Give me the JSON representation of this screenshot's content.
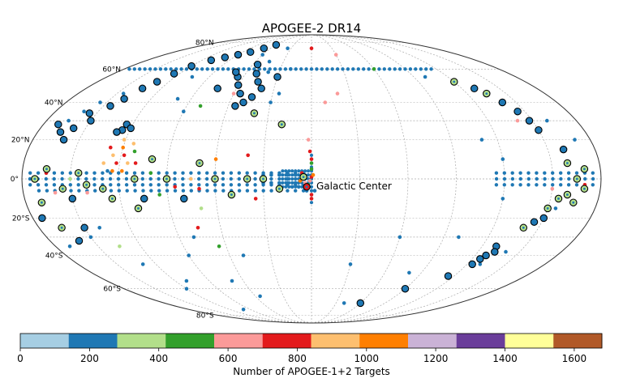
{
  "chart_data": {
    "type": "scatter",
    "projection": "mollweide",
    "coordinate_system": "galactic",
    "title": "APOGEE-2 DR14",
    "annotation": {
      "text": "Galactic Center",
      "l": 0,
      "b": 0
    },
    "lat_ticks": [
      {
        "b": 80,
        "label": "80°N"
      },
      {
        "b": 60,
        "label": "60°N"
      },
      {
        "b": 40,
        "label": "40°N"
      },
      {
        "b": 20,
        "label": "20°N"
      },
      {
        "b": 0,
        "label": "0°"
      },
      {
        "b": -20,
        "label": "20°S"
      },
      {
        "b": -40,
        "label": "40°S"
      },
      {
        "b": -60,
        "label": "60°S"
      },
      {
        "b": -80,
        "label": "80°S"
      }
    ],
    "grid": true,
    "colorbar": {
      "label": "Number of APOGEE-1+2 Targets",
      "range": [
        0,
        1680
      ],
      "colors": [
        "#a6cee3",
        "#1f78b4",
        "#b2df8a",
        "#33a02c",
        "#fb9a99",
        "#e31a1c",
        "#fdbf6f",
        "#ff7f00",
        "#cab2d6",
        "#6a3d9a",
        "#ffff99",
        "#b15928"
      ],
      "ticks": [
        0,
        200,
        400,
        600,
        800,
        1000,
        1200,
        1400,
        1600
      ]
    },
    "series": [
      {
        "name": "disk-band b=+3",
        "b": 3,
        "l_start": 175,
        "l_end": 5,
        "step": 5,
        "color": "#1f78b4"
      },
      {
        "name": "disk-band b=0",
        "b": 0,
        "l_start": 175,
        "l_end": 5,
        "step": 5,
        "color": "#1f78b4"
      },
      {
        "name": "disk-band b=-3",
        "b": -3,
        "l_start": 175,
        "l_end": 5,
        "step": 5,
        "color": "#1f78b4"
      },
      {
        "name": "disk-band b=-6",
        "b": -6,
        "l_start": 170,
        "l_end": 5,
        "step": 5,
        "color": "#1f78b4"
      },
      {
        "name": "disk-band b=+3 (4th quadrant)",
        "b": 3,
        "l_start": -175,
        "l_end": -115,
        "step": 5,
        "color": "#1f78b4"
      },
      {
        "name": "disk-band b=0 (4th quadrant)",
        "b": 0,
        "l_start": -175,
        "l_end": -115,
        "step": 5,
        "color": "#1f78b4"
      },
      {
        "name": "disk-band b=-3 (4th quadrant)",
        "b": -3,
        "l_start": -175,
        "l_end": -115,
        "step": 5,
        "color": "#1f78b4"
      },
      {
        "name": "b=60 stripe",
        "b": 60,
        "l_start": 175,
        "l_end": -115,
        "step": 5,
        "color": "#1f78b4"
      }
    ],
    "points": [
      {
        "l": 0,
        "b": 1,
        "c": "#e31a1c"
      },
      {
        "l": 1,
        "b": -1,
        "c": "#fb9a99"
      },
      {
        "l": -1,
        "b": 2,
        "c": "#ff7f00"
      },
      {
        "l": 2,
        "b": -3,
        "c": "#33a02c"
      },
      {
        "l": 0,
        "b": 5,
        "c": "#33a02c"
      },
      {
        "l": 0,
        "b": 8,
        "c": "#33a02c"
      },
      {
        "l": 0,
        "b": 10,
        "c": "#e31a1c"
      },
      {
        "l": 0,
        "b": -8,
        "c": "#e31a1c"
      },
      {
        "l": 0,
        "b": -10,
        "c": "#e31a1c"
      },
      {
        "l": 1,
        "b": 14,
        "c": "#e31a1c"
      },
      {
        "l": 2,
        "b": 20,
        "c": "#fb9a99"
      },
      {
        "l": 3,
        "b": -6,
        "c": "#1f78b4"
      },
      {
        "l": -2,
        "b": -6,
        "c": "#1f78b4"
      },
      {
        "l": 10,
        "b": 2,
        "c": "#1f78b4"
      },
      {
        "l": 10,
        "b": -2,
        "c": "#1f78b4"
      },
      {
        "l": 15,
        "b": 2,
        "c": "#1f78b4"
      },
      {
        "l": 15,
        "b": -2,
        "c": "#1f78b4"
      },
      {
        "l": 20,
        "b": 2,
        "c": "#1f78b4"
      },
      {
        "l": 20,
        "b": -2,
        "c": "#1f78b4"
      },
      {
        "l": 25,
        "b": 2,
        "c": "#1f78b4"
      },
      {
        "l": 25,
        "b": -2,
        "c": "#1f78b4"
      },
      {
        "l": 30,
        "b": 2,
        "c": "#1f78b4"
      },
      {
        "l": 30,
        "b": -2,
        "c": "#1f78b4"
      },
      {
        "l": 8,
        "b": -4,
        "c": "#1f78b4"
      },
      {
        "l": 12,
        "b": -4,
        "c": "#1f78b4"
      },
      {
        "l": 6,
        "b": 3,
        "c": "#e31a1c"
      },
      {
        "l": 4,
        "b": -2,
        "c": "#fb9a99"
      },
      {
        "l": 7,
        "b": -1,
        "c": "#ff7f00"
      },
      {
        "l": 120,
        "b": 16,
        "c": "#ff7f00"
      },
      {
        "l": 118,
        "b": 12,
        "c": "#e31a1c"
      },
      {
        "l": 115,
        "b": 8,
        "c": "#fdbf6f"
      },
      {
        "l": 122,
        "b": 8,
        "c": "#e31a1c"
      },
      {
        "l": 125,
        "b": 12,
        "c": "#fdbf6f"
      },
      {
        "l": 112,
        "b": 14,
        "c": "#33a02c"
      },
      {
        "l": 128,
        "b": 16,
        "c": "#e31a1c"
      },
      {
        "l": 118,
        "b": 4,
        "c": "#ff7f00"
      },
      {
        "l": 124,
        "b": 4,
        "c": "#ff7f00"
      },
      {
        "l": 130,
        "b": 8,
        "c": "#fdbf6f"
      },
      {
        "l": 110,
        "b": 8,
        "c": "#e31a1c"
      },
      {
        "l": 114,
        "b": 18,
        "c": "#fdbf6f"
      },
      {
        "l": 121,
        "b": 20,
        "c": "#fdbf6f"
      },
      {
        "l": 127,
        "b": 4,
        "c": "#1f78b4"
      },
      {
        "l": 60,
        "b": 10,
        "c": "#ff7f00"
      },
      {
        "l": 70,
        "b": -5,
        "c": "#e31a1c"
      },
      {
        "l": 40,
        "b": 12,
        "c": "#e31a1c"
      },
      {
        "l": 35,
        "b": -10,
        "c": "#e31a1c"
      },
      {
        "l": 85,
        "b": -4,
        "c": "#e31a1c"
      },
      {
        "l": 100,
        "b": 3,
        "c": "#33a02c"
      },
      {
        "l": 140,
        "b": -7,
        "c": "#fb9a99"
      },
      {
        "l": 150,
        "b": 0,
        "c": "#b2df8a"
      },
      {
        "l": 160,
        "b": -7,
        "c": "#fb9a99"
      },
      {
        "l": 165,
        "b": 3,
        "c": "#e31a1c"
      },
      {
        "l": 95,
        "b": -8,
        "c": "#33a02c"
      },
      {
        "l": 75,
        "b": 0,
        "c": "#fdbf6f"
      },
      {
        "l": 20,
        "b": 60,
        "c": "#1f78b4"
      },
      {
        "l": 0,
        "b": 75,
        "c": "#e31a1c"
      },
      {
        "l": 60,
        "b": 45,
        "c": "#fb9a99"
      },
      {
        "l": -20,
        "b": 45,
        "c": "#fb9a99"
      },
      {
        "l": -60,
        "b": 60,
        "c": "#33a02c"
      },
      {
        "l": -100,
        "b": 55,
        "c": "#1f78b4"
      },
      {
        "l": -140,
        "b": 30,
        "c": "#fb9a99"
      },
      {
        "l": -150,
        "b": -20,
        "c": "#e31a1c"
      },
      {
        "l": -160,
        "b": -8,
        "c": "#33a02c"
      },
      {
        "l": -170,
        "b": -3,
        "c": "#e31a1c"
      },
      {
        "l": -120,
        "b": 10,
        "c": "#1f78b4"
      },
      {
        "l": -110,
        "b": 20,
        "c": "#1f78b4"
      },
      {
        "l": -120,
        "b": -10,
        "c": "#1f78b4"
      },
      {
        "l": -100,
        "b": -30,
        "c": "#1f78b4"
      },
      {
        "l": -80,
        "b": -50,
        "c": "#1f78b4"
      },
      {
        "l": -60,
        "b": -30,
        "c": "#1f78b4"
      },
      {
        "l": -30,
        "b": -45,
        "c": "#1f78b4"
      },
      {
        "l": -40,
        "b": -70,
        "c": "#1f78b4"
      },
      {
        "l": -130,
        "b": -45,
        "c": "#1f78b4"
      },
      {
        "l": -140,
        "b": -38,
        "c": "#1f78b4"
      },
      {
        "l": -150,
        "b": -5,
        "c": "#fb9a99"
      },
      {
        "l": -160,
        "b": 30,
        "c": "#1f78b4"
      },
      {
        "l": -170,
        "b": 20,
        "c": "#1f78b4"
      },
      {
        "l": -155,
        "b": -15,
        "c": "#1f78b4"
      },
      {
        "l": 145,
        "b": 45,
        "c": "#1f78b4"
      },
      {
        "l": 155,
        "b": 40,
        "c": "#1f78b4"
      },
      {
        "l": 160,
        "b": 35,
        "c": "#1f78b4"
      },
      {
        "l": 165,
        "b": 30,
        "c": "#1f78b4"
      },
      {
        "l": 140,
        "b": -25,
        "c": "#1f78b4"
      },
      {
        "l": 150,
        "b": -30,
        "c": "#1f78b4"
      },
      {
        "l": 135,
        "b": -35,
        "c": "#b2df8a"
      },
      {
        "l": 170,
        "b": -35,
        "c": "#1f78b4"
      },
      {
        "l": 70,
        "b": -15,
        "c": "#b2df8a"
      },
      {
        "l": 65,
        "b": -35,
        "c": "#33a02c"
      },
      {
        "l": 50,
        "b": -40,
        "c": "#1f78b4"
      },
      {
        "l": 80,
        "b": -30,
        "c": "#1f78b4"
      },
      {
        "l": 90,
        "b": -40,
        "c": "#1f78b4"
      },
      {
        "l": 75,
        "b": -25,
        "c": "#e31a1c"
      },
      {
        "l": 55,
        "b": -65,
        "c": "#1f78b4"
      },
      {
        "l": 70,
        "b": -55,
        "c": "#1f78b4"
      },
      {
        "l": 130,
        "b": -45,
        "c": "#1f78b4"
      },
      {
        "l": 120,
        "b": -60,
        "c": "#1f78b4"
      },
      {
        "l": 100,
        "b": -75,
        "c": "#1f78b4"
      },
      {
        "l": 110,
        "b": -55,
        "c": "#1f78b4"
      },
      {
        "l": 105,
        "b": 55,
        "c": "#1f78b4"
      },
      {
        "l": 100,
        "b": 42,
        "c": "#1f78b4"
      },
      {
        "l": 90,
        "b": 35,
        "c": "#1f78b4"
      },
      {
        "l": 80,
        "b": 38,
        "c": "#33a02c"
      },
      {
        "l": 30,
        "b": 40,
        "c": "#1f78b4"
      },
      {
        "l": 25,
        "b": 45,
        "c": "#1f78b4"
      },
      {
        "l": 40,
        "b": 58,
        "c": "#1f78b4"
      },
      {
        "l": 45,
        "b": 65,
        "c": "#1f78b4"
      },
      {
        "l": 60,
        "b": 70,
        "c": "#1f78b4"
      },
      {
        "l": 35,
        "b": 75,
        "c": "#1f78b4"
      },
      {
        "l": -10,
        "b": 40,
        "c": "#fb9a99"
      },
      {
        "l": -30,
        "b": 70,
        "c": "#fb9a99"
      }
    ],
    "circled_points": [
      {
        "l": 174,
        "b": -20,
        "c": "#1f78b4"
      },
      {
        "l": 165,
        "b": -25,
        "c": "#b2df8a"
      },
      {
        "l": 160,
        "b": -32,
        "c": "#1f78b4"
      },
      {
        "l": 170,
        "b": -12,
        "c": "#b2df8a"
      },
      {
        "l": 155,
        "b": -5,
        "c": "#b2df8a"
      },
      {
        "l": 150,
        "b": -10,
        "c": "#1f78b4"
      },
      {
        "l": 145,
        "b": 3,
        "c": "#b2df8a"
      },
      {
        "l": 140,
        "b": -3,
        "c": "#b2df8a"
      },
      {
        "l": 130,
        "b": -5,
        "c": "#b2df8a"
      },
      {
        "l": 110,
        "b": 0,
        "c": "#b2df8a"
      },
      {
        "l": 105,
        "b": -10,
        "c": "#1f78b4"
      },
      {
        "l": 90,
        "b": 0,
        "c": "#b2df8a"
      },
      {
        "l": 80,
        "b": -10,
        "c": "#1f78b4"
      },
      {
        "l": 60,
        "b": 0,
        "c": "#b2df8a"
      },
      {
        "l": 50,
        "b": -8,
        "c": "#b2df8a"
      },
      {
        "l": 30,
        "b": 0,
        "c": "#b2df8a"
      },
      {
        "l": 20,
        "b": -5,
        "c": "#b2df8a"
      },
      {
        "l": 165,
        "b": 5,
        "c": "#b2df8a"
      },
      {
        "l": 172,
        "b": 0,
        "c": "#b2df8a"
      },
      {
        "l": 125,
        "b": -10,
        "c": "#b2df8a"
      },
      {
        "l": 100,
        "b": 10,
        "c": "#b2df8a"
      },
      {
        "l": 70,
        "b": 8,
        "c": "#b2df8a"
      },
      {
        "l": 40,
        "b": 0,
        "c": "#b2df8a"
      },
      {
        "l": 150,
        "b": -25,
        "c": "#1f78b4"
      },
      {
        "l": 110,
        "b": -15,
        "c": "#b2df8a"
      },
      {
        "l": 125,
        "b": 25,
        "c": "#1f78b4"
      },
      {
        "l": 124,
        "b": 28,
        "c": "#1f78b4"
      },
      {
        "l": 120,
        "b": 26,
        "c": "#1f78b4"
      },
      {
        "l": 128,
        "b": 24,
        "c": "#1f78b4"
      },
      {
        "l": 160,
        "b": 20,
        "c": "#1f78b4"
      },
      {
        "l": 165,
        "b": 24,
        "c": "#1f78b4"
      },
      {
        "l": 170,
        "b": 28,
        "c": "#1f78b4"
      },
      {
        "l": 158,
        "b": 26,
        "c": "#1f78b4"
      },
      {
        "l": 150,
        "b": 30,
        "c": "#1f78b4"
      },
      {
        "l": 155,
        "b": 34,
        "c": "#1f78b4"
      },
      {
        "l": 145,
        "b": 38,
        "c": "#1f78b4"
      },
      {
        "l": 140,
        "b": 42,
        "c": "#1f78b4"
      },
      {
        "l": 135,
        "b": 48,
        "c": "#1f78b4"
      },
      {
        "l": 130,
        "b": 52,
        "c": "#1f78b4"
      },
      {
        "l": 125,
        "b": 57,
        "c": "#1f78b4"
      },
      {
        "l": 120,
        "b": 62,
        "c": "#1f78b4"
      },
      {
        "l": 110,
        "b": 66,
        "c": "#1f78b4"
      },
      {
        "l": 100,
        "b": 68,
        "c": "#1f78b4"
      },
      {
        "l": 90,
        "b": 70,
        "c": "#1f78b4"
      },
      {
        "l": 80,
        "b": 72,
        "c": "#1f78b4"
      },
      {
        "l": 70,
        "b": 75,
        "c": "#1f78b4"
      },
      {
        "l": 60,
        "b": 78,
        "c": "#1f78b4"
      },
      {
        "l": 55,
        "b": 63,
        "c": "#1f78b4"
      },
      {
        "l": 50,
        "b": 57,
        "c": "#1f78b4"
      },
      {
        "l": 45,
        "b": 52,
        "c": "#1f78b4"
      },
      {
        "l": 40,
        "b": 48,
        "c": "#1f78b4"
      },
      {
        "l": 55,
        "b": 45,
        "c": "#1f78b4"
      },
      {
        "l": 60,
        "b": 50,
        "c": "#1f78b4"
      },
      {
        "l": 65,
        "b": 55,
        "c": "#1f78b4"
      },
      {
        "l": 70,
        "b": 58,
        "c": "#1f78b4"
      },
      {
        "l": 50,
        "b": 40,
        "c": "#1f78b4"
      },
      {
        "l": 45,
        "b": 43,
        "c": "#1f78b4"
      },
      {
        "l": 55,
        "b": 38,
        "c": "#1f78b4"
      },
      {
        "l": 75,
        "b": 48,
        "c": "#1f78b4"
      },
      {
        "l": 40,
        "b": 34,
        "c": "#b2df8a"
      },
      {
        "l": 30,
        "b": 55,
        "c": "#1f78b4"
      },
      {
        "l": 20,
        "b": 28,
        "c": "#b2df8a"
      },
      {
        "l": 5,
        "b": 1,
        "c": "#b2df8a"
      },
      {
        "l": 3,
        "b": -4,
        "c": "#e31a1c"
      },
      {
        "l": -160,
        "b": 8,
        "c": "#b2df8a"
      },
      {
        "l": -165,
        "b": 0,
        "c": "#b2df8a"
      },
      {
        "l": -170,
        "b": -5,
        "c": "#b2df8a"
      },
      {
        "l": -160,
        "b": -8,
        "c": "#b2df8a"
      },
      {
        "l": -165,
        "b": -12,
        "c": "#b2df8a"
      },
      {
        "l": -155,
        "b": -10,
        "c": "#b2df8a"
      },
      {
        "l": -150,
        "b": -15,
        "c": "#b2df8a"
      },
      {
        "l": -160,
        "b": 15,
        "c": "#1f78b4"
      },
      {
        "l": -150,
        "b": 25,
        "c": "#1f78b4"
      },
      {
        "l": -145,
        "b": 35,
        "c": "#1f78b4"
      },
      {
        "l": -140,
        "b": 40,
        "c": "#1f78b4"
      },
      {
        "l": -135,
        "b": 45,
        "c": "#b2df8a"
      },
      {
        "l": -130,
        "b": 48,
        "c": "#1f78b4"
      },
      {
        "l": -120,
        "b": 52,
        "c": "#b2df8a"
      },
      {
        "l": -130,
        "b": -35,
        "c": "#1f78b4"
      },
      {
        "l": -132,
        "b": -38,
        "c": "#1f78b4"
      },
      {
        "l": -128,
        "b": -40,
        "c": "#1f78b4"
      },
      {
        "l": -126,
        "b": -42,
        "c": "#1f78b4"
      },
      {
        "l": -124,
        "b": -45,
        "c": "#1f78b4"
      },
      {
        "l": -115,
        "b": -52,
        "c": "#1f78b4"
      },
      {
        "l": -90,
        "b": -60,
        "c": "#1f78b4"
      },
      {
        "l": -60,
        "b": -70,
        "c": "#1f78b4"
      },
      {
        "l": -150,
        "b": -20,
        "c": "#1f78b4"
      },
      {
        "l": -145,
        "b": -22,
        "c": "#1f78b4"
      },
      {
        "l": -140,
        "b": -25,
        "c": "#b2df8a"
      },
      {
        "l": -148,
        "b": 30,
        "c": "#1f78b4"
      },
      {
        "l": -170,
        "b": 5,
        "c": "#b2df8a"
      }
    ]
  }
}
